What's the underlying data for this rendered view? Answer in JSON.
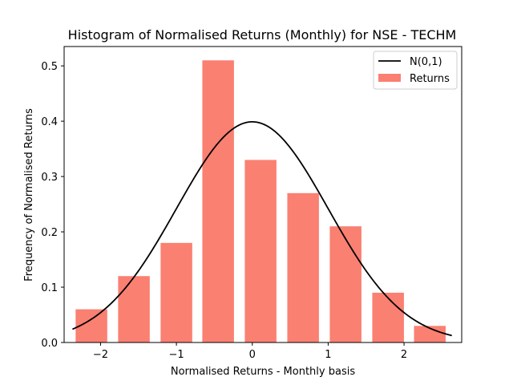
{
  "chart_data": {
    "type": "bar",
    "title": "Histogram of Normalised Returns (Monthly) for NSE - TECHM",
    "xlabel": "Normalised Returns - Monthly basis",
    "ylabel": "Frequency of Normalised Returns",
    "xlim": [
      -2.48,
      2.76
    ],
    "ylim": [
      0,
      0.535
    ],
    "x_ticks": [
      -2,
      -1,
      0,
      1,
      2
    ],
    "x_tick_labels": [
      "−2",
      "−1",
      "0",
      "1",
      "2"
    ],
    "y_ticks": [
      0.0,
      0.1,
      0.2,
      0.3,
      0.4,
      0.5
    ],
    "y_tick_labels": [
      "0.0",
      "0.1",
      "0.2",
      "0.3",
      "0.4",
      "0.5"
    ],
    "grid": false,
    "legend_position": "top-right",
    "bars": {
      "name": "Returns",
      "color": "#FA8072",
      "bin_centers": [
        -2.12,
        -1.56,
        -1.0,
        -0.45,
        0.11,
        0.67,
        1.23,
        1.79,
        2.34
      ],
      "bin_width": 0.556,
      "values": [
        0.06,
        0.12,
        0.18,
        0.51,
        0.33,
        0.27,
        0.21,
        0.09,
        0.03
      ]
    },
    "line": {
      "name": "N(0,1)",
      "color": "#000000",
      "x_range": [
        -2.37,
        2.63
      ],
      "mean": 0,
      "std": 1
    }
  }
}
